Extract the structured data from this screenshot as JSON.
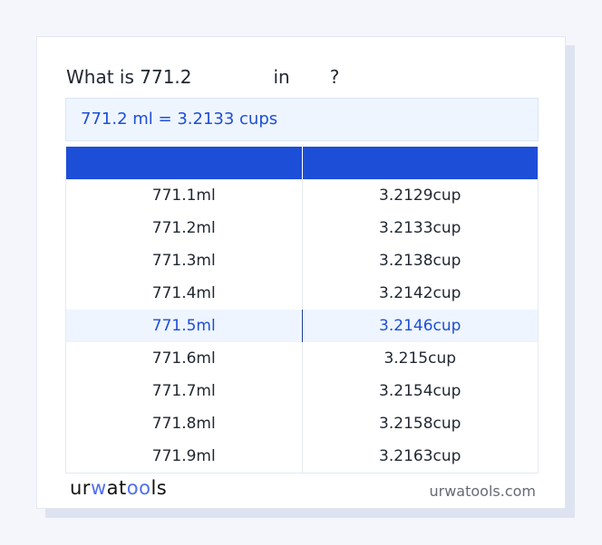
{
  "title": {
    "prefix": "What is 771.2",
    "unit_from": "",
    "in_word": "in",
    "unit_to": "",
    "suffix": "?"
  },
  "result": "771.2 ml = 3.2133 cups",
  "table": {
    "headers": [
      "",
      ""
    ],
    "rows": [
      [
        "771.1ml",
        "3.2129cup"
      ],
      [
        "771.2ml",
        "3.2133cup"
      ],
      [
        "771.3ml",
        "3.2138cup"
      ],
      [
        "771.4ml",
        "3.2142cup"
      ],
      [
        "771.5ml",
        "3.2146cup"
      ],
      [
        "771.6ml",
        "3.215cup"
      ],
      [
        "771.7ml",
        "3.2154cup"
      ],
      [
        "771.8ml",
        "3.2158cup"
      ],
      [
        "771.9ml",
        "3.2163cup"
      ]
    ],
    "highlighted_row": 4
  },
  "footer": {
    "logo": "urwatools",
    "site": "urwatools.com"
  },
  "colors": {
    "accent": "#1d4ed8",
    "highlight_bg": "#eef5fe",
    "page_bg": "#f4f6fb"
  }
}
